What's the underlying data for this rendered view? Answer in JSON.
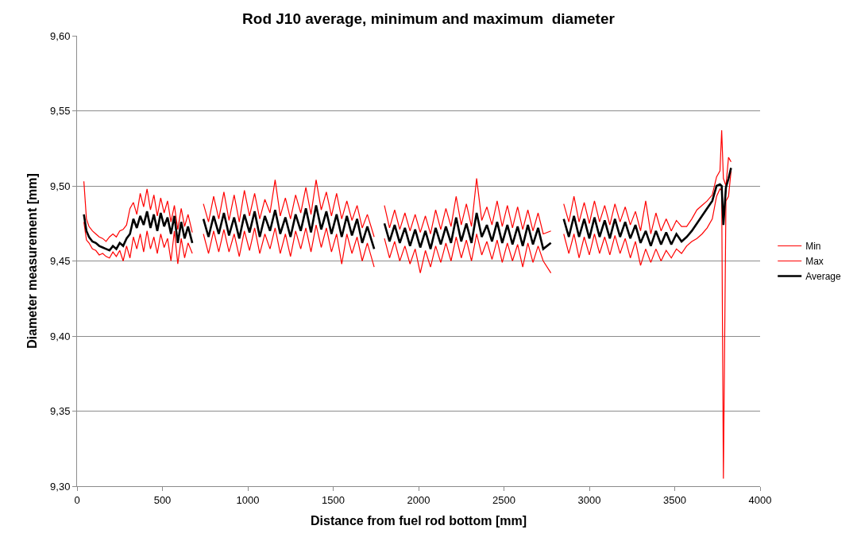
{
  "chart_data": {
    "type": "line",
    "title": "Rod J10 average, minimum and maximum  diameter",
    "xlabel": "Distance from fuel rod bottom [mm]",
    "ylabel": "Diameter measurement [mm]",
    "x": [
      40,
      55,
      70,
      90,
      110,
      130,
      150,
      170,
      190,
      210,
      230,
      250,
      270,
      290,
      310,
      330,
      350,
      370,
      390,
      410,
      430,
      450,
      470,
      490,
      510,
      530,
      550,
      570,
      590,
      610,
      630,
      650,
      675,
      700,
      740,
      770,
      800,
      830,
      860,
      890,
      920,
      950,
      980,
      1010,
      1040,
      1070,
      1100,
      1130,
      1160,
      1190,
      1220,
      1250,
      1280,
      1310,
      1340,
      1370,
      1400,
      1430,
      1460,
      1490,
      1520,
      1550,
      1580,
      1610,
      1640,
      1670,
      1700,
      1740,
      1770,
      1800,
      1830,
      1860,
      1890,
      1920,
      1950,
      1980,
      2010,
      2040,
      2070,
      2100,
      2130,
      2160,
      2190,
      2220,
      2250,
      2280,
      2310,
      2340,
      2370,
      2400,
      2430,
      2460,
      2490,
      2520,
      2550,
      2580,
      2610,
      2640,
      2670,
      2700,
      2730,
      2775,
      2810,
      2850,
      2880,
      2910,
      2940,
      2970,
      3000,
      3030,
      3060,
      3090,
      3120,
      3150,
      3180,
      3210,
      3240,
      3270,
      3300,
      3330,
      3360,
      3390,
      3420,
      3450,
      3480,
      3510,
      3540,
      3570,
      3600,
      3630,
      3660,
      3690,
      3720,
      3745,
      3765,
      3775,
      3785,
      3800,
      3815,
      3830
    ],
    "series": [
      {
        "name": "Min",
        "color": "#ff0000",
        "values": [
          9.476,
          9.464,
          9.462,
          9.458,
          9.457,
          9.454,
          9.455,
          9.453,
          9.452,
          9.456,
          9.453,
          9.457,
          9.45,
          9.46,
          9.452,
          9.466,
          9.458,
          9.468,
          9.456,
          9.47,
          9.458,
          9.466,
          9.455,
          9.468,
          9.459,
          9.465,
          9.45,
          9.47,
          9.448,
          9.465,
          9.452,
          9.462,
          9.455,
          null,
          9.468,
          9.455,
          9.47,
          9.456,
          9.471,
          9.456,
          9.468,
          9.453,
          9.47,
          9.457,
          9.472,
          9.455,
          9.468,
          9.458,
          9.472,
          9.455,
          9.468,
          9.453,
          9.47,
          9.458,
          9.472,
          9.456,
          9.474,
          9.459,
          9.472,
          9.456,
          9.468,
          9.448,
          9.468,
          9.455,
          9.466,
          9.45,
          9.462,
          9.446,
          null,
          9.465,
          9.452,
          9.463,
          9.45,
          9.46,
          9.448,
          9.458,
          9.442,
          9.457,
          9.446,
          9.46,
          9.449,
          9.462,
          9.45,
          9.466,
          9.452,
          9.464,
          9.45,
          9.468,
          9.454,
          9.463,
          9.451,
          9.464,
          9.449,
          9.462,
          9.45,
          9.461,
          9.446,
          9.462,
          9.449,
          9.46,
          9.45,
          9.442,
          null,
          9.468,
          9.455,
          9.468,
          9.452,
          9.466,
          9.454,
          9.468,
          9.455,
          9.466,
          9.454,
          9.467,
          9.455,
          9.465,
          9.452,
          9.463,
          9.447,
          9.458,
          9.449,
          9.458,
          9.45,
          9.457,
          9.452,
          9.458,
          9.455,
          9.46,
          9.463,
          9.465,
          9.468,
          9.472,
          9.478,
          9.493,
          9.498,
          9.497,
          9.305,
          9.49,
          9.493,
          9.51
        ]
      },
      {
        "name": "Max",
        "color": "#ff0000",
        "values": [
          9.503,
          9.478,
          9.473,
          9.47,
          9.468,
          9.466,
          9.465,
          9.463,
          9.466,
          9.468,
          9.466,
          9.47,
          9.471,
          9.474,
          9.485,
          9.489,
          9.481,
          9.495,
          9.486,
          9.498,
          9.484,
          9.494,
          9.48,
          9.492,
          9.482,
          9.49,
          9.476,
          9.487,
          9.471,
          9.485,
          9.473,
          9.481,
          9.469,
          null,
          9.488,
          9.476,
          9.493,
          9.478,
          9.496,
          9.477,
          9.494,
          9.476,
          9.497,
          9.48,
          9.495,
          9.478,
          9.491,
          9.482,
          9.504,
          9.48,
          9.492,
          9.478,
          9.494,
          9.482,
          9.499,
          9.481,
          9.504,
          9.484,
          9.496,
          9.48,
          9.495,
          9.478,
          9.49,
          9.477,
          9.487,
          9.472,
          9.481,
          9.466,
          null,
          9.487,
          9.472,
          9.484,
          9.471,
          9.482,
          9.47,
          9.481,
          9.469,
          9.48,
          9.468,
          9.484,
          9.471,
          9.485,
          9.473,
          9.493,
          9.474,
          9.488,
          9.473,
          9.505,
          9.477,
          9.486,
          9.474,
          9.49,
          9.473,
          9.487,
          9.472,
          9.486,
          9.471,
          9.484,
          9.47,
          9.482,
          9.468,
          9.47,
          null,
          9.488,
          9.476,
          9.493,
          9.476,
          9.489,
          9.475,
          9.49,
          9.476,
          9.487,
          9.474,
          9.488,
          9.476,
          9.486,
          9.474,
          9.483,
          9.47,
          9.49,
          9.468,
          9.482,
          9.47,
          9.478,
          9.47,
          9.477,
          9.473,
          9.473,
          9.478,
          9.484,
          9.487,
          9.49,
          9.494,
          9.506,
          9.51,
          9.537,
          9.505,
          9.5,
          9.519,
          9.516
        ]
      },
      {
        "name": "Average",
        "color": "#000000",
        "values": [
          9.481,
          9.47,
          9.466,
          9.463,
          9.462,
          9.46,
          9.459,
          9.458,
          9.457,
          9.46,
          9.458,
          9.462,
          9.46,
          9.465,
          9.468,
          9.478,
          9.472,
          9.48,
          9.474,
          9.483,
          9.472,
          9.481,
          9.47,
          9.482,
          9.473,
          9.479,
          9.468,
          9.48,
          9.462,
          9.476,
          9.465,
          9.473,
          9.462,
          null,
          9.478,
          9.466,
          9.48,
          9.468,
          9.482,
          9.467,
          9.479,
          9.465,
          9.481,
          9.469,
          9.483,
          9.466,
          9.48,
          9.47,
          9.484,
          9.468,
          9.479,
          9.466,
          9.481,
          9.47,
          9.485,
          9.469,
          9.487,
          9.471,
          9.483,
          9.468,
          9.481,
          9.466,
          9.48,
          9.467,
          9.478,
          9.462,
          9.473,
          9.458,
          null,
          9.475,
          9.463,
          9.474,
          9.462,
          9.472,
          9.46,
          9.471,
          9.459,
          9.47,
          9.458,
          9.472,
          9.461,
          9.473,
          9.462,
          9.479,
          9.463,
          9.475,
          9.462,
          9.482,
          9.466,
          9.474,
          9.463,
          9.476,
          9.462,
          9.474,
          9.461,
          9.473,
          9.46,
          9.474,
          9.461,
          9.472,
          9.458,
          9.462,
          null,
          9.478,
          9.466,
          9.48,
          9.466,
          9.478,
          9.465,
          9.479,
          9.466,
          9.477,
          9.465,
          9.478,
          9.466,
          9.476,
          9.465,
          9.474,
          9.462,
          9.47,
          9.46,
          9.47,
          9.461,
          9.469,
          9.461,
          9.468,
          9.463,
          9.466,
          9.47,
          9.475,
          9.48,
          9.485,
          9.49,
          9.5,
          9.501,
          9.5,
          9.474,
          9.499,
          9.505,
          9.512
        ]
      }
    ],
    "xlim": [
      0,
      4000
    ],
    "xticks": [
      0,
      500,
      1000,
      1500,
      2000,
      2500,
      3000,
      3500,
      4000
    ],
    "ylim": [
      9.3,
      9.6
    ],
    "yticks": [
      {
        "value": 9.3,
        "label": "9,30"
      },
      {
        "value": 9.35,
        "label": "9,35"
      },
      {
        "value": 9.4,
        "label": "9,40"
      },
      {
        "value": 9.45,
        "label": "9,45"
      },
      {
        "value": 9.5,
        "label": "9,50"
      },
      {
        "value": 9.55,
        "label": "9,55"
      },
      {
        "value": 9.6,
        "label": "9,60"
      }
    ],
    "grid": "y",
    "legend": "right",
    "marker": "none",
    "line_style": "solid"
  }
}
